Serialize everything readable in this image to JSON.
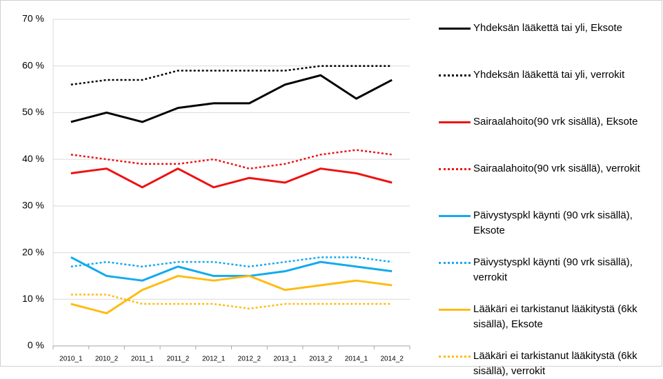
{
  "chart_data": {
    "type": "line",
    "categories": [
      "2010_1",
      "2010_2",
      "2011_1",
      "2011_2",
      "2012_1",
      "2012_2",
      "2013_1",
      "2013_2",
      "2014_1",
      "2014_2"
    ],
    "ylim": [
      0,
      70
    ],
    "yticks": [
      {
        "value": 0,
        "label": "0 %"
      },
      {
        "value": 10,
        "label": "10 %"
      },
      {
        "value": 20,
        "label": "20 %"
      },
      {
        "value": 30,
        "label": "30 %"
      },
      {
        "value": 40,
        "label": "40 %"
      },
      {
        "value": 50,
        "label": "50 %"
      },
      {
        "value": 60,
        "label": "60 %"
      },
      {
        "value": 70,
        "label": "70 %"
      }
    ],
    "grid": true,
    "legend": "right",
    "series": [
      {
        "name": "Yhdeksän lääkettä tai yli, Eksote",
        "color": "#000000",
        "linestyle": "solid",
        "values": [
          48,
          50,
          48,
          51,
          52,
          52,
          56,
          58,
          53,
          57
        ]
      },
      {
        "name": "Yhdeksän lääkettä tai yli, verrokit",
        "color": "#000000",
        "linestyle": "dotted",
        "values": [
          56,
          57,
          57,
          59,
          59,
          59,
          59,
          60,
          60,
          60
        ]
      },
      {
        "name": "Sairaalahoito(90 vrk sisällä), Eksote",
        "color": "#ee1111",
        "linestyle": "solid",
        "values": [
          37,
          38,
          34,
          38,
          34,
          36,
          35,
          38,
          37,
          35
        ]
      },
      {
        "name": "Sairaalahoito(90 vrk sisällä), verrokit",
        "color": "#ee1111",
        "linestyle": "dotted",
        "values": [
          41,
          40,
          39,
          39,
          40,
          38,
          39,
          41,
          42,
          41
        ]
      },
      {
        "name": "Päivystyspkl käynti (90 vrk sisällä), Eksote",
        "color": "#11aaee",
        "linestyle": "solid",
        "values": [
          19,
          15,
          14,
          17,
          15,
          15,
          16,
          18,
          17,
          16
        ]
      },
      {
        "name": "Päivystyspkl käynti (90 vrk sisällä), verrokit",
        "color": "#11aaee",
        "linestyle": "dotted",
        "values": [
          17,
          18,
          17,
          18,
          18,
          17,
          18,
          19,
          19,
          18
        ]
      },
      {
        "name": "Lääkäri ei tarkistanut lääkitystä (6kk sisällä), Eksote",
        "color": "#ffbb11",
        "linestyle": "solid",
        "values": [
          9,
          7,
          12,
          15,
          14,
          15,
          12,
          13,
          14,
          13
        ]
      },
      {
        "name": "Lääkäri ei tarkistanut lääkitystä (6kk sisällä), verrokit",
        "color": "#ffbb11",
        "linestyle": "dotted",
        "values": [
          11,
          11,
          9,
          9,
          9,
          8,
          9,
          9,
          9,
          9
        ]
      }
    ]
  }
}
